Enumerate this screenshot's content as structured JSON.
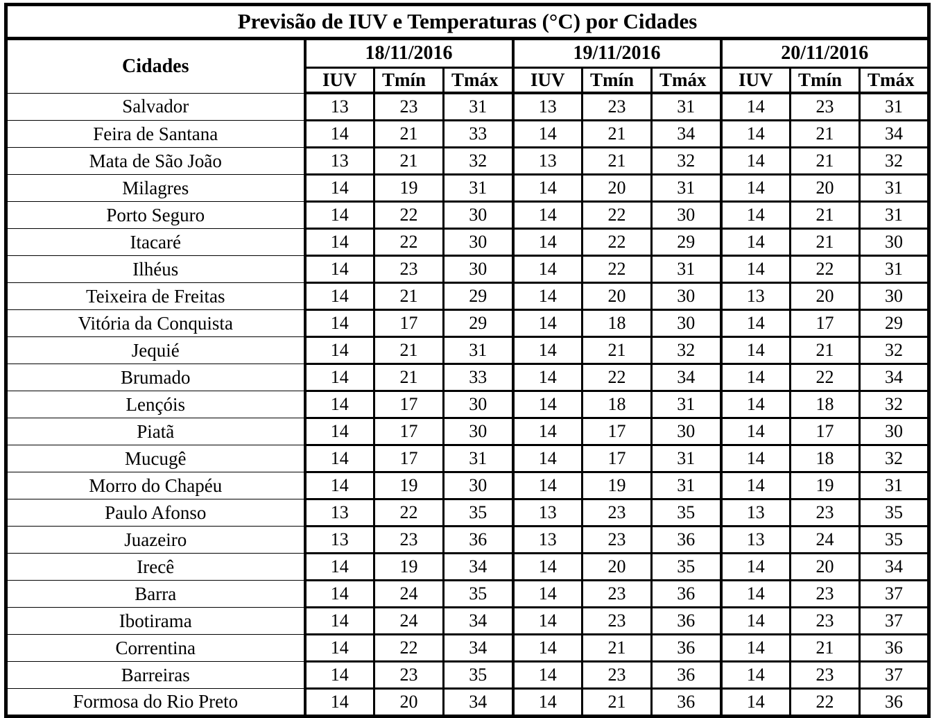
{
  "chart_data": {
    "type": "table",
    "title": "Previsão de IUV e Temperaturas (°C) por Cidades",
    "row_header": "Cidades",
    "column_groups": [
      "18/11/2016",
      "19/11/2016",
      "20/11/2016"
    ],
    "sub_columns": [
      "IUV",
      "Tmín",
      "Tmáx"
    ],
    "rows": [
      {
        "city": "Salvador",
        "values": [
          [
            13,
            23,
            31
          ],
          [
            13,
            23,
            31
          ],
          [
            14,
            23,
            31
          ]
        ]
      },
      {
        "city": "Feira de Santana",
        "values": [
          [
            14,
            21,
            33
          ],
          [
            14,
            21,
            34
          ],
          [
            14,
            21,
            34
          ]
        ]
      },
      {
        "city": "Mata de São João",
        "values": [
          [
            13,
            21,
            32
          ],
          [
            13,
            21,
            32
          ],
          [
            14,
            21,
            32
          ]
        ]
      },
      {
        "city": "Milagres",
        "values": [
          [
            14,
            19,
            31
          ],
          [
            14,
            20,
            31
          ],
          [
            14,
            20,
            31
          ]
        ]
      },
      {
        "city": "Porto Seguro",
        "values": [
          [
            14,
            22,
            30
          ],
          [
            14,
            22,
            30
          ],
          [
            14,
            21,
            31
          ]
        ]
      },
      {
        "city": "Itacaré",
        "values": [
          [
            14,
            22,
            30
          ],
          [
            14,
            22,
            29
          ],
          [
            14,
            21,
            30
          ]
        ]
      },
      {
        "city": "Ilhéus",
        "values": [
          [
            14,
            23,
            30
          ],
          [
            14,
            22,
            31
          ],
          [
            14,
            22,
            31
          ]
        ]
      },
      {
        "city": "Teixeira de Freitas",
        "values": [
          [
            14,
            21,
            29
          ],
          [
            14,
            20,
            30
          ],
          [
            13,
            20,
            30
          ]
        ]
      },
      {
        "city": "Vitória da Conquista",
        "values": [
          [
            14,
            17,
            29
          ],
          [
            14,
            18,
            30
          ],
          [
            14,
            17,
            29
          ]
        ]
      },
      {
        "city": "Jequié",
        "values": [
          [
            14,
            21,
            31
          ],
          [
            14,
            21,
            32
          ],
          [
            14,
            21,
            32
          ]
        ]
      },
      {
        "city": "Brumado",
        "values": [
          [
            14,
            21,
            33
          ],
          [
            14,
            22,
            34
          ],
          [
            14,
            22,
            34
          ]
        ]
      },
      {
        "city": "Lençóis",
        "values": [
          [
            14,
            17,
            30
          ],
          [
            14,
            18,
            31
          ],
          [
            14,
            18,
            32
          ]
        ]
      },
      {
        "city": "Piatã",
        "values": [
          [
            14,
            17,
            30
          ],
          [
            14,
            17,
            30
          ],
          [
            14,
            17,
            30
          ]
        ]
      },
      {
        "city": "Mucugê",
        "values": [
          [
            14,
            17,
            31
          ],
          [
            14,
            17,
            31
          ],
          [
            14,
            18,
            32
          ]
        ]
      },
      {
        "city": "Morro do Chapéu",
        "values": [
          [
            14,
            19,
            30
          ],
          [
            14,
            19,
            31
          ],
          [
            14,
            19,
            31
          ]
        ]
      },
      {
        "city": "Paulo Afonso",
        "values": [
          [
            13,
            22,
            35
          ],
          [
            13,
            23,
            35
          ],
          [
            13,
            23,
            35
          ]
        ]
      },
      {
        "city": "Juazeiro",
        "values": [
          [
            13,
            23,
            36
          ],
          [
            13,
            23,
            36
          ],
          [
            13,
            24,
            35
          ]
        ]
      },
      {
        "city": "Irecê",
        "values": [
          [
            14,
            19,
            34
          ],
          [
            14,
            20,
            35
          ],
          [
            14,
            20,
            34
          ]
        ]
      },
      {
        "city": "Barra",
        "values": [
          [
            14,
            24,
            35
          ],
          [
            14,
            23,
            36
          ],
          [
            14,
            23,
            37
          ]
        ]
      },
      {
        "city": "Ibotirama",
        "values": [
          [
            14,
            24,
            34
          ],
          [
            14,
            23,
            36
          ],
          [
            14,
            23,
            37
          ]
        ]
      },
      {
        "city": "Correntina",
        "values": [
          [
            14,
            22,
            34
          ],
          [
            14,
            21,
            36
          ],
          [
            14,
            21,
            36
          ]
        ]
      },
      {
        "city": "Barreiras",
        "values": [
          [
            14,
            23,
            35
          ],
          [
            14,
            23,
            36
          ],
          [
            14,
            23,
            37
          ]
        ]
      },
      {
        "city": "Formosa do Rio Preto",
        "values": [
          [
            14,
            20,
            34
          ],
          [
            14,
            21,
            36
          ],
          [
            14,
            22,
            36
          ]
        ]
      }
    ],
    "colors": {
      "border": "#000000",
      "background": "#ffffff",
      "text": "#000000"
    }
  }
}
